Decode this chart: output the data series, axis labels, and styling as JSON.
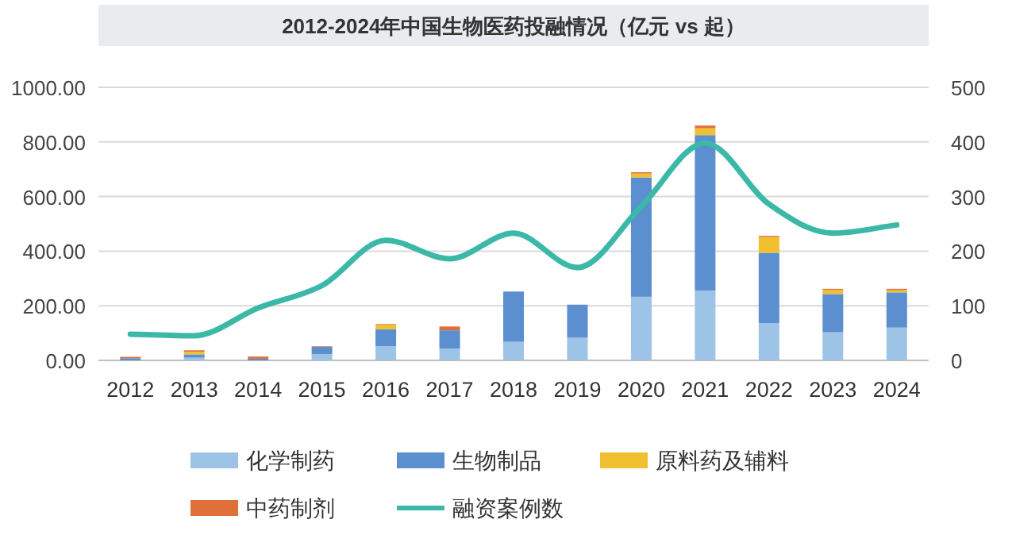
{
  "chart_data": {
    "type": "bar",
    "title": "2012-2024年中国生物医药投融情况（亿元 vs 起）",
    "categories": [
      "2012",
      "2013",
      "2014",
      "2015",
      "2016",
      "2017",
      "2018",
      "2019",
      "2020",
      "2021",
      "2022",
      "2023",
      "2024"
    ],
    "stacked": true,
    "series": [
      {
        "name": "化学制药",
        "color": "#9dc3e6",
        "values": [
          null,
          10,
          null,
          23,
          52,
          43,
          68,
          83,
          233,
          256,
          136,
          103,
          120
        ]
      },
      {
        "name": "生物制品",
        "color": "#5b8fcf",
        "values": [
          8,
          12,
          6,
          27,
          62,
          67,
          184,
          121,
          437,
          569,
          258,
          140,
          129
        ]
      },
      {
        "name": "原料药及辅料",
        "color": "#f0c030",
        "values": [
          0,
          10,
          0,
          0,
          17,
          0,
          0,
          0,
          14,
          25,
          58,
          15,
          8
        ]
      },
      {
        "name": "中药制剂",
        "color": "#e0703a",
        "values": [
          5,
          5,
          8,
          2,
          2,
          14,
          0,
          0,
          5,
          10,
          4,
          4,
          5
        ]
      },
      {
        "name": "融资案例数",
        "color": "#3cb8a8",
        "type": "line",
        "axis": "y2",
        "values": [
          48,
          45,
          96,
          137,
          220,
          186,
          233,
          170,
          282,
          398,
          286,
          233,
          248
        ]
      }
    ],
    "ylim": [
      0,
      1000
    ],
    "yticks": [
      {
        "value": 0,
        "label": "0.00"
      },
      {
        "value": 200,
        "label": "200.00"
      },
      {
        "value": 400,
        "label": "400.00"
      },
      {
        "value": 600,
        "label": "600.00"
      },
      {
        "value": 800,
        "label": "800.00"
      },
      {
        "value": 1000,
        "label": "1000.00"
      }
    ],
    "y2lim": [
      0,
      500
    ],
    "y2ticks": [
      0,
      100,
      200,
      300,
      400,
      500
    ],
    "grid": "y",
    "legend": "bottom"
  }
}
